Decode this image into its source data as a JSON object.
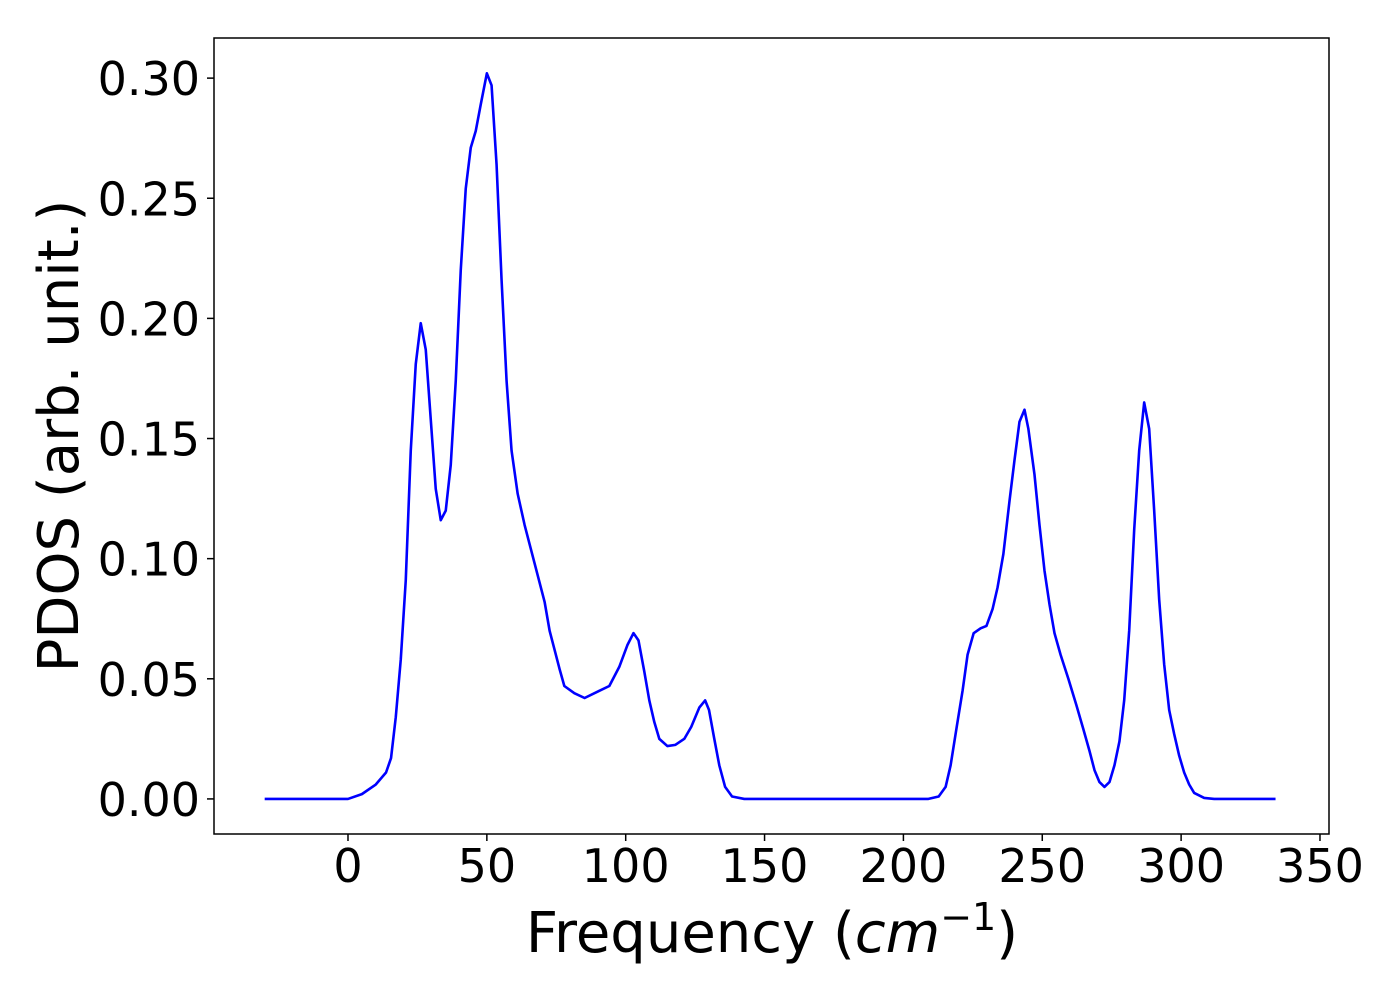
{
  "chart_data": {
    "type": "line",
    "x_label_parts": [
      "Frequency (",
      "cm",
      "−1",
      ")"
    ],
    "y_label": "PDOS (arb. unit.)",
    "x": [
      -30,
      0,
      5,
      10,
      13.7,
      15.5,
      17.2,
      19,
      20.8,
      22.6,
      24.4,
      26.2,
      28,
      29.8,
      31.6,
      33.4,
      35.2,
      37,
      38.8,
      40.6,
      42.4,
      44.2,
      46,
      47.8,
      50,
      51.7,
      53.5,
      55.3,
      57.1,
      58.9,
      61.1,
      63.6,
      67.2,
      70.8,
      72.6,
      74.4,
      76.2,
      77.9,
      81.5,
      85.2,
      90.5,
      94.1,
      97.7,
      100.6,
      102.8,
      104.6,
      106.7,
      108.5,
      110.3,
      112.1,
      115,
      117.9,
      121.1,
      123.6,
      126.5,
      128.6,
      130,
      131.9,
      133.7,
      135.8,
      138.3,
      142.7,
      209,
      212.7,
      215.2,
      217,
      219.2,
      221.3,
      223.1,
      225.3,
      227.8,
      229.9,
      232.1,
      233.9,
      236,
      238.2,
      240,
      241.8,
      243.6,
      245,
      247.2,
      249,
      250.8,
      252.6,
      254.4,
      256.6,
      259.4,
      262.3,
      264.8,
      267,
      268.8,
      270.6,
      272.4,
      274.2,
      276,
      277.8,
      279.5,
      281.3,
      283.1,
      284.9,
      286.7,
      288.5,
      290.3,
      292.1,
      293.9,
      295.7,
      297.5,
      299.3,
      301.1,
      302.9,
      304.7,
      308.3,
      311.9,
      334
    ],
    "series": [
      {
        "color": "#0000ff",
        "values": [
          0,
          0,
          0.002,
          0.006,
          0.011,
          0.017,
          0.034,
          0.058,
          0.091,
          0.145,
          0.181,
          0.198,
          0.187,
          0.158,
          0.129,
          0.116,
          0.12,
          0.139,
          0.174,
          0.22,
          0.254,
          0.271,
          0.278,
          0.289,
          0.302,
          0.297,
          0.264,
          0.216,
          0.174,
          0.145,
          0.127,
          0.114,
          0.098,
          0.082,
          0.07,
          0.062,
          0.054,
          0.047,
          0.044,
          0.042,
          0.045,
          0.047,
          0.055,
          0.064,
          0.069,
          0.066,
          0.053,
          0.041,
          0.032,
          0.025,
          0.022,
          0.0225,
          0.025,
          0.03,
          0.038,
          0.041,
          0.037,
          0.025,
          0.014,
          0.005,
          0.001,
          0,
          0,
          0.001,
          0.005,
          0.014,
          0.03,
          0.045,
          0.06,
          0.069,
          0.071,
          0.072,
          0.079,
          0.088,
          0.102,
          0.124,
          0.141,
          0.157,
          0.162,
          0.154,
          0.135,
          0.114,
          0.095,
          0.081,
          0.069,
          0.06,
          0.05,
          0.039,
          0.029,
          0.02,
          0.012,
          0.007,
          0.005,
          0.007,
          0.014,
          0.024,
          0.041,
          0.07,
          0.112,
          0.145,
          0.165,
          0.154,
          0.12,
          0.083,
          0.056,
          0.037,
          0.027,
          0.018,
          0.011,
          0.006,
          0.0025,
          0.0004,
          0,
          0
        ]
      }
    ],
    "xlim": [
      -48.25,
      353.25
    ],
    "ylim": [
      -0.0146,
      0.3167
    ],
    "xticks": [
      0,
      50,
      100,
      150,
      200,
      250,
      300,
      350
    ],
    "yticks": [
      {
        "value": 0,
        "label": "0.00"
      },
      {
        "value": 0.05,
        "label": "0.05"
      },
      {
        "value": 0.1,
        "label": "0.10"
      },
      {
        "value": 0.15,
        "label": "0.15"
      },
      {
        "value": 0.2,
        "label": "0.20"
      },
      {
        "value": 0.25,
        "label": "0.25"
      },
      {
        "value": 0.3,
        "label": "0.30"
      }
    ],
    "grid": false
  }
}
